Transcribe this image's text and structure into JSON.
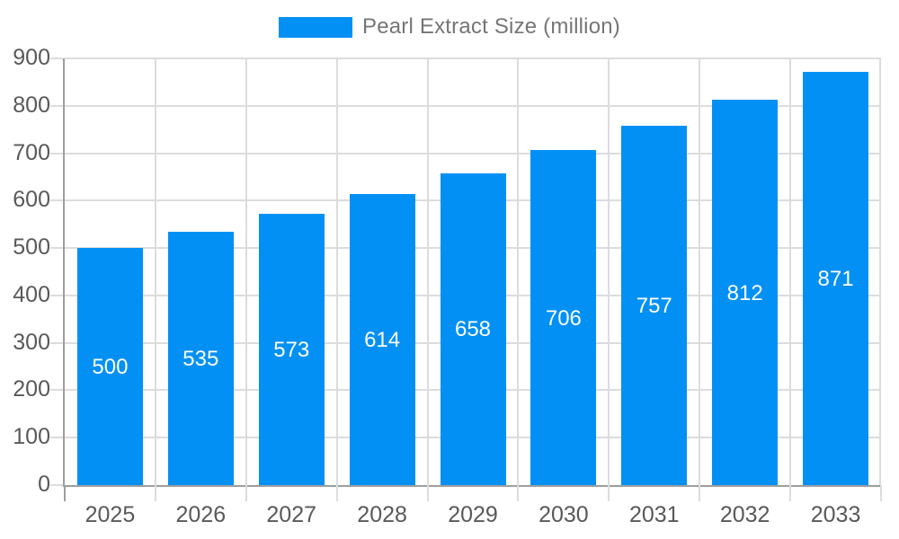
{
  "legend": {
    "label": "Pearl Extract Size (million)"
  },
  "colors": {
    "bar": "#0290f5",
    "grid": "#dcdcdc",
    "axis": "#9e9e9e",
    "tick_text": "#595959",
    "legend_text": "#757575",
    "value_text": "#ffffff"
  },
  "chart_data": {
    "type": "bar",
    "title": "Pearl Extract Size (million)",
    "categories": [
      "2025",
      "2026",
      "2027",
      "2028",
      "2029",
      "2030",
      "2031",
      "2032",
      "2033"
    ],
    "values": [
      500,
      535,
      573,
      614,
      658,
      706,
      757,
      812,
      871
    ],
    "xlabel": "",
    "ylabel": "",
    "ylim": [
      0,
      900
    ],
    "y_tick_step": 100,
    "y_ticks": [
      0,
      100,
      200,
      300,
      400,
      500,
      600,
      700,
      800,
      900
    ],
    "grid": true,
    "vertical_grid": true,
    "legend_position": "top-center",
    "value_labels": "inside-middle"
  }
}
